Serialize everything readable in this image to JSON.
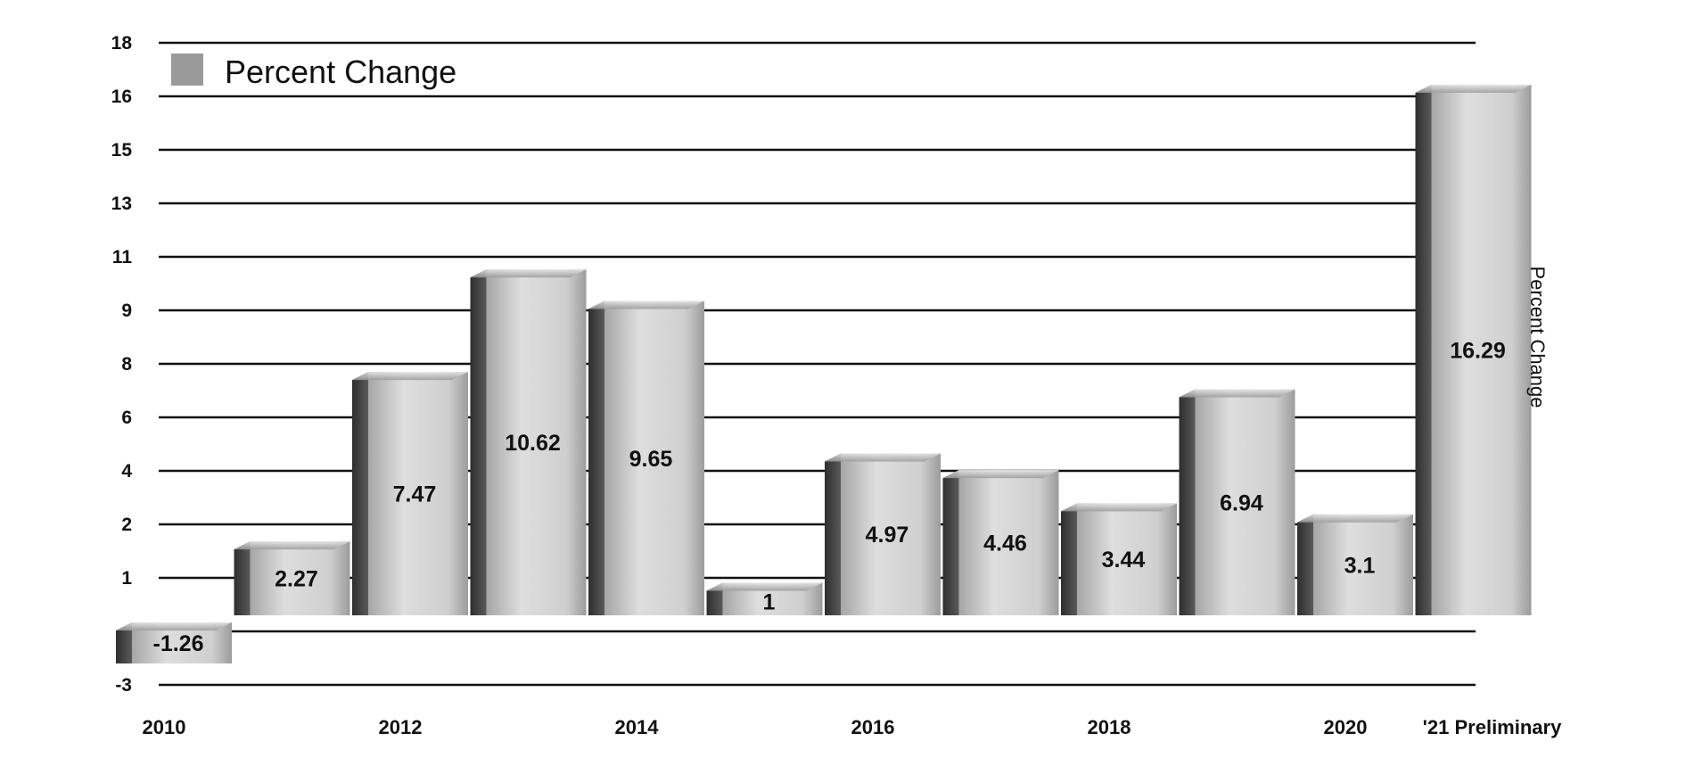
{
  "chart_data": {
    "type": "bar",
    "categories": [
      "2010",
      "",
      "2012",
      "",
      "2014",
      "",
      "2016",
      "",
      "2018",
      "",
      "2020",
      "'21 Preliminary"
    ],
    "series": [
      {
        "name": "Percent Change",
        "values": [
          -1.26,
          2.27,
          7.47,
          10.62,
          9.65,
          1,
          4.97,
          4.46,
          3.44,
          6.94,
          3.1,
          16.29
        ]
      }
    ],
    "value_labels": [
      "-1.26",
      "2.27",
      "7.47",
      "10.62",
      "9.65",
      "1",
      "4.97",
      "4.46",
      "3.44",
      "6.94",
      "3.1",
      "16.29"
    ],
    "y_tick_labels": [
      "18",
      "16",
      "15",
      "13",
      "11",
      "9",
      "8",
      "6",
      "4",
      "2",
      "1",
      "",
      "-3"
    ],
    "ylabel": "Percent Change",
    "ylim": [
      -3,
      18
    ],
    "grid": true,
    "legend": {
      "position": "top-left",
      "label": "Percent Change"
    },
    "colors": {
      "bar_light": "#d2d2d2",
      "bar_mid": "#a9a9a9",
      "bar_dark": "#3a3a3a",
      "grid": "#111111",
      "legend_swatch": "#9a9a9a"
    }
  }
}
